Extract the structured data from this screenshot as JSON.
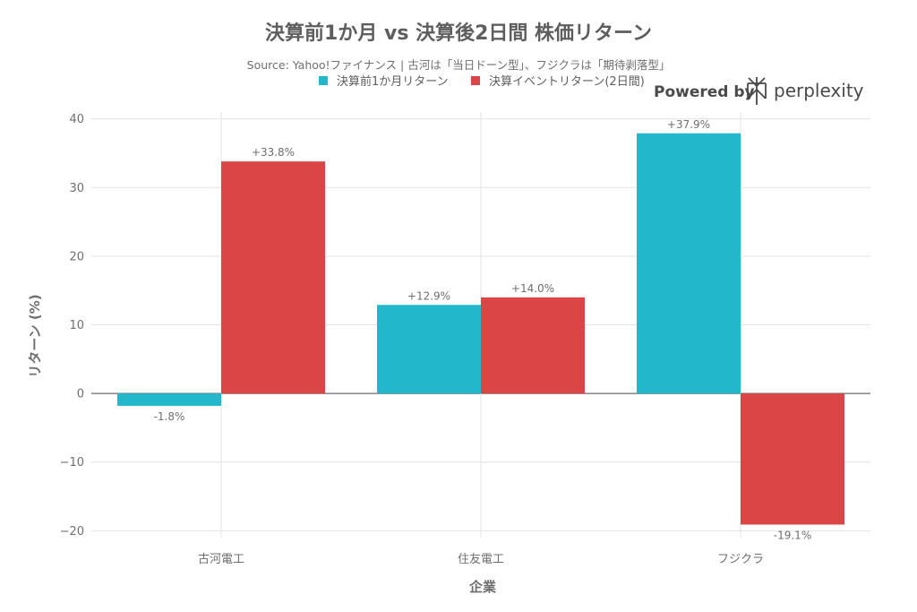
{
  "chart_data": {
    "type": "bar",
    "title": "決算前1か月 vs 決算後2日間 株価リターン",
    "subtitle": "Source: Yahoo!ファイナンス | 古河は「当日ドーン型」、フジクラは「期待剥落型」",
    "xlabel": "企業",
    "ylabel": "リターン (%)",
    "categories": [
      "古河電工",
      "住友電工",
      "フジクラ"
    ],
    "series": [
      {
        "name": "決算前1か月リターン",
        "color": "#21b8cc",
        "values": [
          -1.8,
          12.9,
          37.9
        ],
        "labels": [
          "-1.8%",
          "+12.9%",
          "+37.9%"
        ]
      },
      {
        "name": "決算イベントリターン(2日間)",
        "color": "#db4545",
        "values": [
          33.8,
          14.0,
          -19.1
        ],
        "labels": [
          "+33.8%",
          "+14.0%",
          "-19.1%"
        ]
      }
    ],
    "ylim": [
      -21,
      41
    ],
    "yticks": [
      -20,
      -10,
      0,
      10,
      20,
      30,
      40
    ],
    "ytick_labels": [
      "−20",
      "−10",
      "0",
      "10",
      "20",
      "30",
      "40"
    ],
    "grid": true,
    "legend_position": "top"
  },
  "branding": {
    "powered_by": "Powered by",
    "name": "perplexity",
    "icon": "perplexity-logo-icon"
  }
}
